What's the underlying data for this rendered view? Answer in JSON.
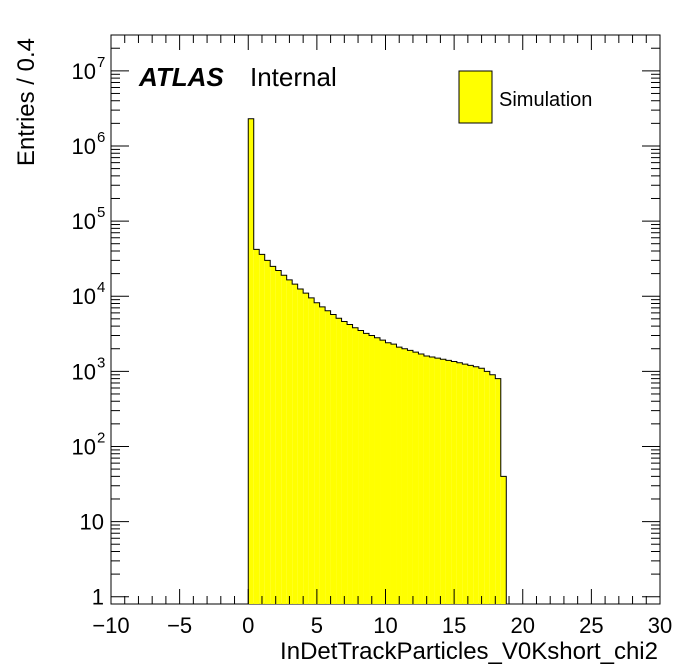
{
  "chart_data": {
    "type": "bar",
    "xlabel": "InDetTrackParticles_V0Kshort_chi2",
    "ylabel": "Entries / 0.4",
    "xlim": [
      -10,
      30
    ],
    "ylim": [
      0.8,
      30000000
    ],
    "yscale": "log",
    "bin_width": 0.4,
    "x_ticks": [
      "−10",
      "−5",
      "0",
      "5",
      "10",
      "15",
      "20",
      "25",
      "30"
    ],
    "y_ticks": [
      {
        "base": "1",
        "exp": ""
      },
      {
        "base": "10",
        "exp": ""
      },
      {
        "base": "10",
        "exp": "2"
      },
      {
        "base": "10",
        "exp": "3"
      },
      {
        "base": "10",
        "exp": "4"
      },
      {
        "base": "10",
        "exp": "5"
      },
      {
        "base": "10",
        "exp": "6"
      },
      {
        "base": "10",
        "exp": "7"
      }
    ],
    "grid": false,
    "legend_position": "top-right",
    "series": [
      {
        "name": "Simulation",
        "color": "#ffff00",
        "edge_color": "#000000",
        "bin_low_edges": [
          0.0,
          0.4,
          0.8,
          1.2,
          1.6,
          2.0,
          2.4,
          2.8,
          3.2,
          3.6,
          4.0,
          4.4,
          4.8,
          5.2,
          5.6,
          6.0,
          6.4,
          6.8,
          7.2,
          7.6,
          8.0,
          8.4,
          8.8,
          9.2,
          9.6,
          10.0,
          10.4,
          10.8,
          11.2,
          11.6,
          12.0,
          12.4,
          12.8,
          13.2,
          13.6,
          14.0,
          14.4,
          14.8,
          15.2,
          15.6,
          16.0,
          16.4,
          16.8,
          17.2,
          17.6,
          18.0,
          18.4
        ],
        "values": [
          2300000,
          42000,
          36000,
          30000,
          25000,
          22000,
          19000,
          16500,
          14500,
          12500,
          11000,
          9500,
          8200,
          7200,
          6400,
          5700,
          5100,
          4600,
          4200,
          3800,
          3500,
          3200,
          3000,
          2800,
          2600,
          2400,
          2300,
          2100,
          2000,
          1900,
          1800,
          1700,
          1600,
          1550,
          1500,
          1450,
          1400,
          1350,
          1300,
          1250,
          1200,
          1150,
          1100,
          1000,
          900,
          800,
          40
        ]
      }
    ]
  },
  "brand": {
    "label": "ATLAS",
    "status": "Internal"
  }
}
